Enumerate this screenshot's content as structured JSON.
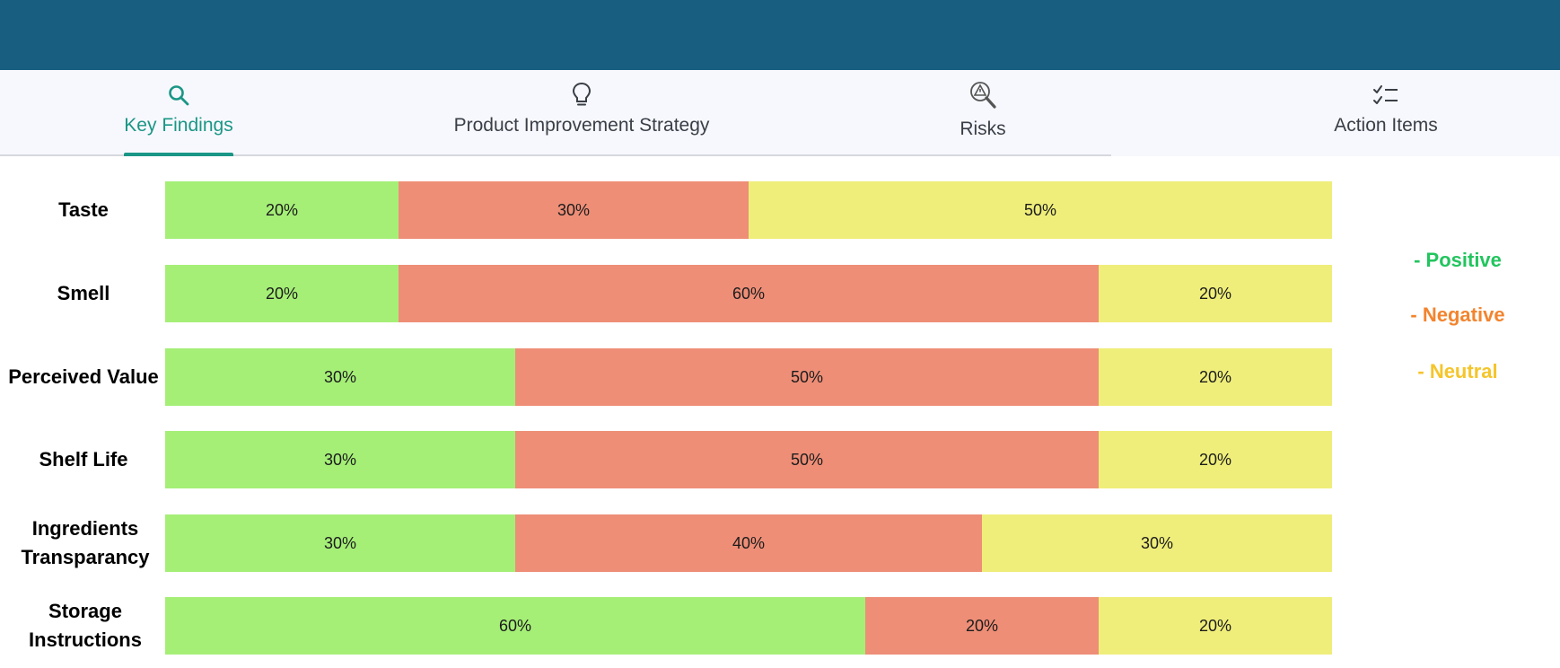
{
  "colors": {
    "header": "#175e80",
    "tabbar": "#f7f8fd",
    "active_tab": "#1a9686",
    "positive": "#a5ef77",
    "negative": "#ee8e77",
    "neutral": "#efee7a",
    "legend_positive": "#22c55e",
    "legend_negative": "#f3842e",
    "legend_neutral": "#f5c52a"
  },
  "tabs": [
    {
      "label": "Key Findings",
      "icon": "search-icon",
      "active": true
    },
    {
      "label": "Product Improvement Strategy",
      "icon": "lightbulb-icon",
      "active": false
    },
    {
      "label": "Risks",
      "icon": "risk-analysis-icon",
      "active": false
    },
    {
      "label": "Action Items",
      "icon": "checklist-icon",
      "active": false
    }
  ],
  "chart_data": {
    "type": "bar",
    "stacked": true,
    "orientation": "horizontal",
    "percent_scale": true,
    "categories": [
      "Taste",
      "Smell",
      "Perceived Value",
      "Shelf Life",
      "Ingredients Transparancy",
      "Storage Instructions"
    ],
    "series": [
      {
        "name": "Positive",
        "values": [
          20,
          20,
          30,
          30,
          30,
          60
        ],
        "labels": [
          "20%",
          "20%",
          "30%",
          "30%",
          "30%",
          "60%"
        ]
      },
      {
        "name": "Negative",
        "values": [
          30,
          60,
          50,
          50,
          40,
          20
        ],
        "labels": [
          "30%",
          "60%",
          "50%",
          "50%",
          "40%",
          "20%"
        ]
      },
      {
        "name": "Neutral",
        "values": [
          50,
          20,
          20,
          20,
          30,
          20
        ],
        "labels": [
          "50%",
          "20%",
          "20%",
          "20%",
          "30%",
          "20%"
        ]
      }
    ]
  },
  "legend": [
    {
      "text": "- Positive"
    },
    {
      "text": "- Negative"
    },
    {
      "text": "- Neutral"
    }
  ]
}
